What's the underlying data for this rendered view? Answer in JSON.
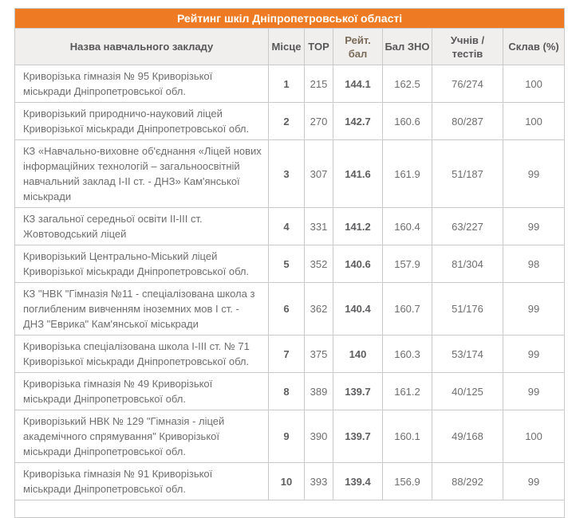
{
  "title": "Рейтинг шкіл Дніпропетровської області",
  "colors": {
    "accent_orange": "#ee7b23",
    "title_text": "#ffffff",
    "header_bg": "#f0efed",
    "header_text": "#58585a",
    "rating_header_text": "#7a6a58",
    "body_text": "#6e6e6e",
    "border": "#c9c9c9"
  },
  "table": {
    "columns": [
      "Назва навчального закладу",
      "Місце",
      "TOP",
      "Рейт. бал",
      "Бал ЗНО",
      "Учнів / тестів",
      "Склав (%)"
    ],
    "rows": [
      {
        "name": "Криворізька гімназія № 95 Криворізької міськради Дніпропетровської обл.",
        "place": "1",
        "top": "215",
        "rating": "144.1",
        "zno": "162.5",
        "students": "76/274",
        "passed": "100"
      },
      {
        "name": "Криворізький природничо-науковий ліцей Криворізької міськради Дніпропетровської обл.",
        "place": "2",
        "top": "270",
        "rating": "142.7",
        "zno": "160.6",
        "students": "80/287",
        "passed": "100"
      },
      {
        "name": "КЗ «Навчально-виховне об'єднання «Ліцей нових інформаційних технологій – загальноосвітній навчальний заклад І-ІІ ст. - ДНЗ» Кам'янської міськради",
        "place": "3",
        "top": "307",
        "rating": "141.6",
        "zno": "161.9",
        "students": "51/187",
        "passed": "99"
      },
      {
        "name": "КЗ загальної середньої освіти ІІ-ІІІ ст. Жовтоводський ліцей",
        "place": "4",
        "top": "331",
        "rating": "141.2",
        "zno": "160.4",
        "students": "63/227",
        "passed": "99"
      },
      {
        "name": "Криворізький Центрально-Міський ліцей Криворізької міськради Дніпропетровської обл.",
        "place": "5",
        "top": "352",
        "rating": "140.6",
        "zno": "157.9",
        "students": "81/304",
        "passed": "98"
      },
      {
        "name": "КЗ \"НВК \"Гімназія №11 - спеціалізована школа з поглибленим вивченням іноземних мов І ст. - ДНЗ \"Еврика\" Кам'янської міськради",
        "place": "6",
        "top": "362",
        "rating": "140.4",
        "zno": "160.7",
        "students": "51/176",
        "passed": "99"
      },
      {
        "name": "Криворізька спеціалізована школа І-ІІІ ст. № 71 Криворізької міськради Дніпропетровської обл.",
        "place": "7",
        "top": "375",
        "rating": "140",
        "zno": "160.3",
        "students": "53/174",
        "passed": "99"
      },
      {
        "name": "Криворізька гімназія № 49 Криворізької міськради Дніпропетровської обл.",
        "place": "8",
        "top": "389",
        "rating": "139.7",
        "zno": "161.2",
        "students": "40/125",
        "passed": "99"
      },
      {
        "name": "Криворізький НВК № 129 \"Гімназія - ліцей академічного спрямування\" Криворізької міськради Дніпропетровської обл.",
        "place": "9",
        "top": "390",
        "rating": "139.7",
        "zno": "160.1",
        "students": "49/168",
        "passed": "100"
      },
      {
        "name": "Криворізька гімназія № 91 Криворізької міськради Дніпропетровської обл.",
        "place": "10",
        "top": "393",
        "rating": "139.4",
        "zno": "156.9",
        "students": "88/292",
        "passed": "99"
      }
    ]
  }
}
